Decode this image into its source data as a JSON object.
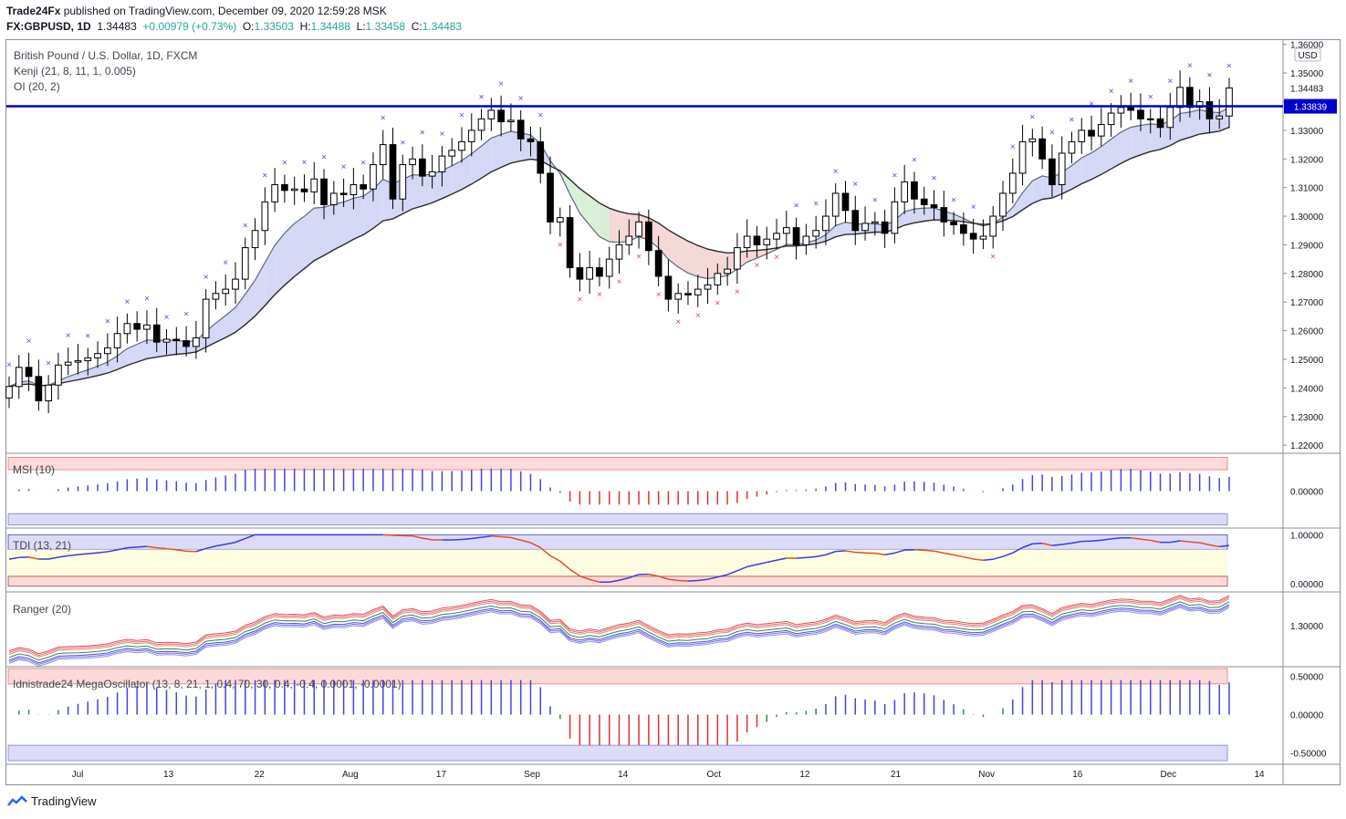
{
  "header": {
    "publisher": "Trade24Fx",
    "published_text": " published on TradingView.com, December 09, 2020 12:59:28 MSK",
    "symbol": "FX:GBPUSD, 1D",
    "last": "1.34483",
    "change": "+0.00979 (+0.73%)",
    "open_label": "O:",
    "open": "1.33503",
    "high_label": "H:",
    "high": "1.34488",
    "low_label": "L:",
    "low": "1.33458",
    "close_label": "C:",
    "close": "1.34483"
  },
  "legends": {
    "instrument": "British Pound / U.S. Dollar, 1D, FXCM",
    "kenji": "Kenji (21, 8, 11, 1, 0.005)",
    "oi": "OI (20, 2)",
    "msi": "MSI (10)",
    "tdi": "TDI (13, 21)",
    "ranger": "Ranger (20)",
    "mega": "Idnistrade24 MegaOscillator (13, 8, 21, 1, 0.4, 70, 30, 0.4, -0.4, 0.0001, -0.0001)"
  },
  "footer": {
    "brand": "TradingView"
  },
  "colors": {
    "up_candle": "#ffffff",
    "down_candle": "#000000",
    "hline": "#0000cc",
    "band_blue": "#d4d8f5",
    "band_red": "#f5d8d8",
    "band_green": "#d8f0d8",
    "marker_blue": "#4a4ae0",
    "marker_red": "#e04a4a",
    "msi_pos": "#4444dd",
    "msi_neg": "#e03030",
    "msi_neutral": "#2e8b57",
    "zone_red": "#fcdada",
    "zone_blue": "#dcdcf8",
    "zone_yellow": "#fffde0"
  },
  "chart_data": [
    {
      "type": "candlestick",
      "title": "British Pound / U.S. Dollar, 1D, FXCM",
      "x_tick_labels": [
        "Jul",
        "13",
        "22",
        "Aug",
        "17",
        "Sep",
        "14",
        "Oct",
        "12",
        "21",
        "Nov",
        "16",
        "Dec",
        "14"
      ],
      "y_tick_labels": [
        "1.36000",
        "1.35000",
        "1.34000",
        "1.33000",
        "1.32000",
        "1.31000",
        "1.30000",
        "1.29000",
        "1.28000",
        "1.27000",
        "1.26000",
        "1.25000",
        "1.24000",
        "1.23000",
        "1.22000"
      ],
      "ylim": [
        1.2175,
        1.3615
      ],
      "currency": "USD",
      "last_price_label": "1.34483",
      "horizontal_line_label": "1.33839",
      "horizontal_line": 1.33839,
      "close": [
        1.2405,
        1.2472,
        1.244,
        1.2355,
        1.241,
        1.248,
        1.249,
        1.2495,
        1.2505,
        1.252,
        1.254,
        1.259,
        1.2625,
        1.2605,
        1.262,
        1.256,
        1.257,
        1.2565,
        1.2545,
        1.2575,
        1.271,
        1.273,
        1.2745,
        1.278,
        1.289,
        1.295,
        1.305,
        1.311,
        1.309,
        1.3095,
        1.3085,
        1.313,
        1.304,
        1.308,
        1.3075,
        1.311,
        1.3095,
        1.318,
        1.325,
        1.306,
        1.318,
        1.32,
        1.314,
        1.3155,
        1.321,
        1.323,
        1.326,
        1.33,
        1.334,
        1.337,
        1.333,
        1.3335,
        1.327,
        1.326,
        1.315,
        1.298,
        1.2995,
        1.282,
        1.278,
        1.282,
        1.279,
        1.285,
        1.29,
        1.293,
        1.298,
        1.288,
        1.279,
        1.271,
        1.273,
        1.2725,
        1.2745,
        1.276,
        1.28,
        1.2815,
        1.289,
        1.293,
        1.29,
        1.292,
        1.294,
        1.296,
        1.29,
        1.293,
        1.295,
        1.3,
        1.308,
        1.302,
        1.295,
        1.2975,
        1.298,
        1.294,
        1.305,
        1.312,
        1.306,
        1.304,
        1.303,
        1.298,
        1.297,
        1.294,
        1.292,
        1.293,
        1.3,
        1.308,
        1.315,
        1.326,
        1.327,
        1.32,
        1.311,
        1.322,
        1.326,
        1.33,
        1.328,
        1.332,
        1.336,
        1.338,
        1.337,
        1.334,
        1.334,
        1.331,
        1.338,
        1.345,
        1.338,
        1.34,
        1.334,
        1.335,
        1.3448
      ]
    },
    {
      "type": "bar",
      "title": "MSI (10)",
      "y_tick_labels": [
        "0.00000"
      ],
      "levels": [
        0.95,
        -1.0
      ]
    },
    {
      "type": "line",
      "title": "TDI (13, 21)",
      "y_tick_labels": [
        "1.00000",
        "0.00000"
      ],
      "levels": [
        0.7,
        0.15
      ]
    },
    {
      "type": "line",
      "title": "Ranger (20)",
      "y_tick_labels": [
        "1.30000"
      ]
    },
    {
      "type": "bar",
      "title": "Idnistrade24 MegaOscillator (13, 8, 21, 1, 0.4, 70, 30, 0.4, -0.4, 0.0001, -0.0001)",
      "y_tick_labels": [
        "0.50000",
        "0.00000",
        "-0.50000"
      ],
      "levels": [
        0.4,
        -0.4
      ]
    }
  ]
}
